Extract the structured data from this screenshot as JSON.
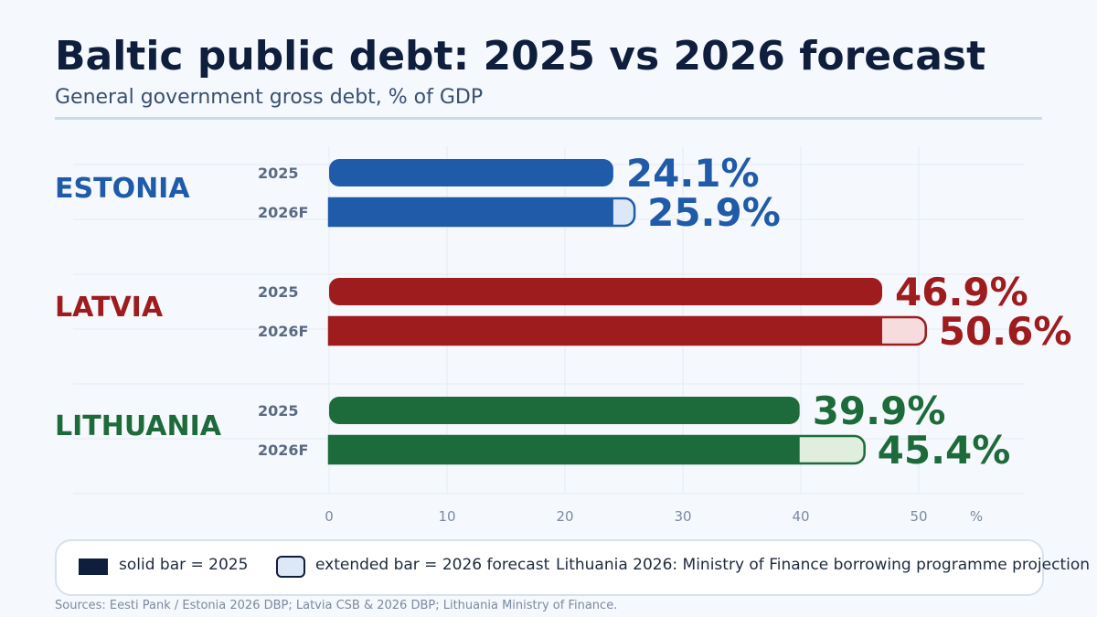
{
  "title": "Baltic public debt: 2025 vs 2026 forecast",
  "subtitle": "General government gross debt, % of GDP",
  "chart_data": {
    "type": "bar",
    "orientation": "horizontal",
    "title": "Baltic public debt: 2025 vs 2026 forecast",
    "subtitle": "General government gross debt, % of GDP",
    "xlabel": "%",
    "xlim": [
      0,
      55
    ],
    "x_ticks": [
      0,
      10,
      20,
      30,
      40,
      50
    ],
    "grid": true,
    "groups": [
      {
        "name": "ESTONIA",
        "color": "#1f5ba8",
        "light_color": "#dce8f7",
        "bars": [
          {
            "label": "2025",
            "value": 24.1,
            "display": "24.1%"
          },
          {
            "label": "2026F",
            "value": 25.9,
            "display": "25.9%"
          }
        ]
      },
      {
        "name": "LATVIA",
        "color": "#9e1b1e",
        "light_color": "#f7dcde",
        "bars": [
          {
            "label": "2025",
            "value": 46.9,
            "display": "46.9%"
          },
          {
            "label": "2026F",
            "value": 50.6,
            "display": "50.6%"
          }
        ]
      },
      {
        "name": "LITHUANIA",
        "color": "#1d6b3a",
        "light_color": "#dfeedd",
        "bars": [
          {
            "label": "2025",
            "value": 39.9,
            "display": "39.9%"
          },
          {
            "label": "2026F",
            "value": 45.4,
            "display": "45.4%"
          }
        ]
      }
    ]
  },
  "legend": {
    "solid_label": "solid bar = 2025",
    "extended_label": "extended bar = 2026 forecast",
    "note": "Lithuania 2026: Ministry of Finance borrowing programme projection"
  },
  "source": "Sources: Eesti Pank / Estonia 2026 DBP; Latvia CSB & 2026 DBP; Lithuania Ministry of Finance."
}
